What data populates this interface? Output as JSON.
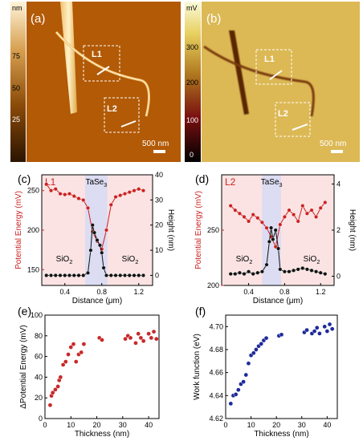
{
  "panel_labels": {
    "a": "(a)",
    "b": "(b)",
    "c": "(c)",
    "d": "(d)",
    "e": "(e)",
    "f": "(f)"
  },
  "image_a": {
    "colorbar_unit": "nm",
    "colorbar_ticks": [
      "75",
      "50",
      "25"
    ],
    "box1_label": "L1",
    "box2_label": "L2",
    "scale_bar": "500 nm"
  },
  "image_b": {
    "colorbar_unit": "mV",
    "colorbar_ticks": [
      "300",
      "200",
      "100",
      "0"
    ],
    "box1_label": "L1",
    "box2_label": "L2",
    "scale_bar": "500 nm"
  },
  "chart_data": [
    {
      "panel": "(c)",
      "type": "line",
      "tag": "L1",
      "xlabel": "Distance (μm)",
      "ylabel_left": "Potential Energy (mV)",
      "ylabel_right": "Height (nm)",
      "xlim": [
        0.15,
        1.35
      ],
      "ylim_left": [
        130,
        270
      ],
      "ylim_right": [
        -4,
        40
      ],
      "xticks": [
        "0.4",
        "0.8",
        "1.2"
      ],
      "yticks_left": [
        "150",
        "200",
        "250"
      ],
      "yticks_right": [
        "0",
        "10",
        "20",
        "30",
        "40"
      ],
      "annotations": {
        "left": "SiO2",
        "right": "SiO2",
        "top": "TaSe3"
      },
      "highlight": [
        0.62,
        0.86
      ],
      "colors": {
        "potential": "#cc2020",
        "height": "#111111",
        "left_axis": "#cc2020",
        "background": "#fbe3e3",
        "band": "#dcdcf3"
      },
      "series": [
        {
          "name": "Potential Energy",
          "axis": "left",
          "x": [
            0.2,
            0.25,
            0.3,
            0.35,
            0.4,
            0.45,
            0.5,
            0.55,
            0.6,
            0.65,
            0.7,
            0.75,
            0.8,
            0.85,
            0.9,
            0.95,
            1.0,
            1.05,
            1.1,
            1.15,
            1.2,
            1.25
          ],
          "y": [
            258,
            250,
            252,
            246,
            245,
            246,
            243,
            240,
            238,
            228,
            198,
            186,
            176,
            200,
            232,
            242,
            244,
            246,
            248,
            250,
            252,
            250
          ]
        },
        {
          "name": "Height",
          "axis": "right",
          "x": [
            0.2,
            0.25,
            0.3,
            0.35,
            0.4,
            0.45,
            0.5,
            0.55,
            0.6,
            0.65,
            0.68,
            0.7,
            0.72,
            0.75,
            0.78,
            0.8,
            0.82,
            0.85,
            0.9,
            0.95,
            1.0,
            1.05,
            1.1,
            1.15,
            1.2,
            1.25
          ],
          "y": [
            0,
            0,
            0,
            0,
            0,
            0,
            0,
            0,
            0,
            1,
            10,
            20,
            17,
            14,
            12,
            9,
            3,
            0,
            0,
            0,
            0,
            0,
            0,
            0,
            0,
            0
          ]
        }
      ]
    },
    {
      "panel": "(d)",
      "type": "line",
      "tag": "L2",
      "xlabel": "Distance (μm)",
      "ylabel_left": "Potential Energy (mV)",
      "ylabel_right": "Height (nm)",
      "xlim": [
        0.1,
        1.35
      ],
      "ylim_left": [
        200,
        300
      ],
      "ylim_right": [
        -0.4,
        4.4
      ],
      "xticks": [
        "0.4",
        "0.8",
        "1.2"
      ],
      "yticks_left": [
        "200",
        "250"
      ],
      "yticks_right": [
        "0",
        "2",
        "4"
      ],
      "annotations": {
        "left": "SiO2",
        "right": "SiO2",
        "top": "TaSe3"
      },
      "highlight": [
        0.55,
        0.76
      ],
      "colors": {
        "potential": "#cc2020",
        "height": "#111111",
        "left_axis": "#cc2020",
        "background": "#fbe3e3",
        "band": "#dcdcf3"
      },
      "series": [
        {
          "name": "Potential Energy",
          "axis": "left",
          "x": [
            0.2,
            0.25,
            0.3,
            0.35,
            0.4,
            0.45,
            0.5,
            0.55,
            0.6,
            0.65,
            0.7,
            0.75,
            0.8,
            0.85,
            0.9,
            0.95,
            1.0,
            1.05,
            1.1,
            1.15,
            1.2,
            1.25
          ],
          "y": [
            272,
            268,
            265,
            262,
            258,
            264,
            261,
            257,
            252,
            244,
            235,
            255,
            262,
            268,
            264,
            258,
            272,
            265,
            268,
            262,
            270,
            275
          ]
        },
        {
          "name": "Height",
          "axis": "right",
          "x": [
            0.2,
            0.25,
            0.3,
            0.35,
            0.4,
            0.45,
            0.5,
            0.55,
            0.6,
            0.63,
            0.65,
            0.67,
            0.7,
            0.73,
            0.75,
            0.8,
            0.85,
            0.9,
            0.95,
            1.0,
            1.05,
            1.1,
            1.15,
            1.2,
            1.25
          ],
          "y": [
            0.1,
            0.1,
            0.15,
            0.1,
            0.2,
            0.1,
            0.15,
            0.2,
            0.5,
            1.5,
            2.1,
            1.6,
            2.0,
            1.2,
            0.3,
            0.2,
            0.2,
            0.25,
            0.3,
            0.35,
            0.3,
            0.25,
            0.2,
            0.15,
            0.1
          ]
        }
      ]
    },
    {
      "panel": "(e)",
      "type": "scatter",
      "xlabel": "Thickness (nm)",
      "ylabel": "ΔPotential Energy (mV)",
      "xlim": [
        0,
        44
      ],
      "ylim": [
        0,
        100
      ],
      "xticks": [
        "0",
        "10",
        "20",
        "30",
        "40"
      ],
      "yticks": [
        "0",
        "20",
        "40",
        "60",
        "80",
        "100"
      ],
      "color": "#c82828",
      "series": [
        {
          "name": "",
          "x": [
            2,
            2.5,
            3,
            4,
            5,
            5.5,
            6,
            7,
            8,
            9,
            10,
            11,
            12,
            13,
            14,
            15,
            21,
            22,
            31,
            32,
            33,
            35,
            36,
            37,
            38,
            40,
            41,
            42,
            43
          ],
          "y": [
            13,
            22,
            25,
            28,
            31,
            37,
            40,
            52,
            55,
            62,
            69,
            72,
            55,
            62,
            64,
            72,
            78,
            76,
            77,
            80,
            78,
            73,
            82,
            78,
            75,
            82,
            78,
            84,
            77
          ]
        }
      ]
    },
    {
      "panel": "(f)",
      "type": "scatter",
      "xlabel": "Thickness (nm)",
      "ylabel": "Work function (eV)",
      "xlim": [
        0,
        44
      ],
      "ylim": [
        4.62,
        4.71
      ],
      "xticks": [
        "0",
        "10",
        "20",
        "30",
        "40"
      ],
      "yticks": [
        "4.62",
        "4.64",
        "4.66",
        "4.68",
        "4.70"
      ],
      "color": "#1e2a9a",
      "series": [
        {
          "name": "",
          "x": [
            2,
            3,
            4,
            5,
            6,
            7,
            8,
            9,
            10,
            11,
            12,
            13,
            14,
            15,
            16,
            21,
            22,
            31,
            32,
            34,
            35,
            36,
            37,
            39,
            40,
            41,
            42
          ],
          "y": [
            4.633,
            4.64,
            4.641,
            4.645,
            4.65,
            4.652,
            4.658,
            4.668,
            4.675,
            4.677,
            4.68,
            4.683,
            4.685,
            4.688,
            4.69,
            4.692,
            4.693,
            4.695,
            4.697,
            4.694,
            4.696,
            4.699,
            4.694,
            4.7,
            4.696,
            4.702,
            4.698
          ]
        }
      ]
    }
  ]
}
